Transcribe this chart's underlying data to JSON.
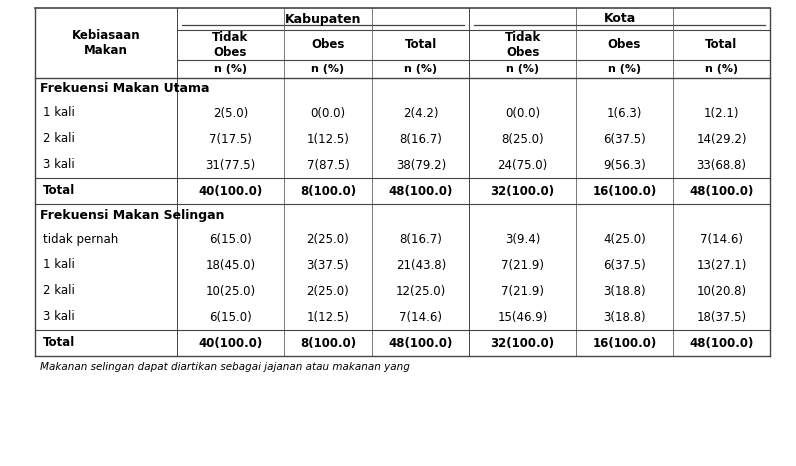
{
  "footnote": "Makanan selingan dapat diartikan sebagai jajanan atau makanan yang",
  "col_header_row2": [
    "Kebiasaan\nMakan",
    "Tidak\nObes",
    "Obes",
    "Total",
    "Tidak\nObes",
    "Obes",
    "Total"
  ],
  "section1_title": "Frekuensi Makan Utama",
  "section1_rows": [
    [
      "1 kali",
      "2(5.0)",
      "0(0.0)",
      "2(4.2)",
      "0(0.0)",
      "1(6.3)",
      "1(2.1)"
    ],
    [
      "2 kali",
      "7(17.5)",
      "1(12.5)",
      "8(16.7)",
      "8(25.0)",
      "6(37.5)",
      "14(29.2)"
    ],
    [
      "3 kali",
      "31(77.5)",
      "7(87.5)",
      "38(79.2)",
      "24(75.0)",
      "9(56.3)",
      "33(68.8)"
    ]
  ],
  "section1_total": [
    "Total",
    "40(100.0)",
    "8(100.0)",
    "48(100.0)",
    "32(100.0)",
    "16(100.0)",
    "48(100.0)"
  ],
  "section2_title": "Frekuensi Makan Selingan",
  "section2_rows": [
    [
      "tidak pernah",
      "6(15.0)",
      "2(25.0)",
      "8(16.7)",
      "3(9.4)",
      "4(25.0)",
      "7(14.6)"
    ],
    [
      "1 kali",
      "18(45.0)",
      "3(37.5)",
      "21(43.8)",
      "7(21.9)",
      "6(37.5)",
      "13(27.1)"
    ],
    [
      "2 kali",
      "10(25.0)",
      "2(25.0)",
      "12(25.0)",
      "7(21.9)",
      "3(18.8)",
      "10(20.8)"
    ],
    [
      "3 kali",
      "6(15.0)",
      "1(12.5)",
      "7(14.6)",
      "15(46.9)",
      "3(18.8)",
      "18(37.5)"
    ]
  ],
  "section2_total": [
    "Total",
    "40(100.0)",
    "8(100.0)",
    "48(100.0)",
    "32(100.0)",
    "16(100.0)",
    "48(100.0)"
  ],
  "bg_color_white": "#ffffff",
  "text_color": "#000000",
  "border_color": "#444444",
  "fig_width": 7.96,
  "fig_height": 4.66,
  "dpi": 100
}
